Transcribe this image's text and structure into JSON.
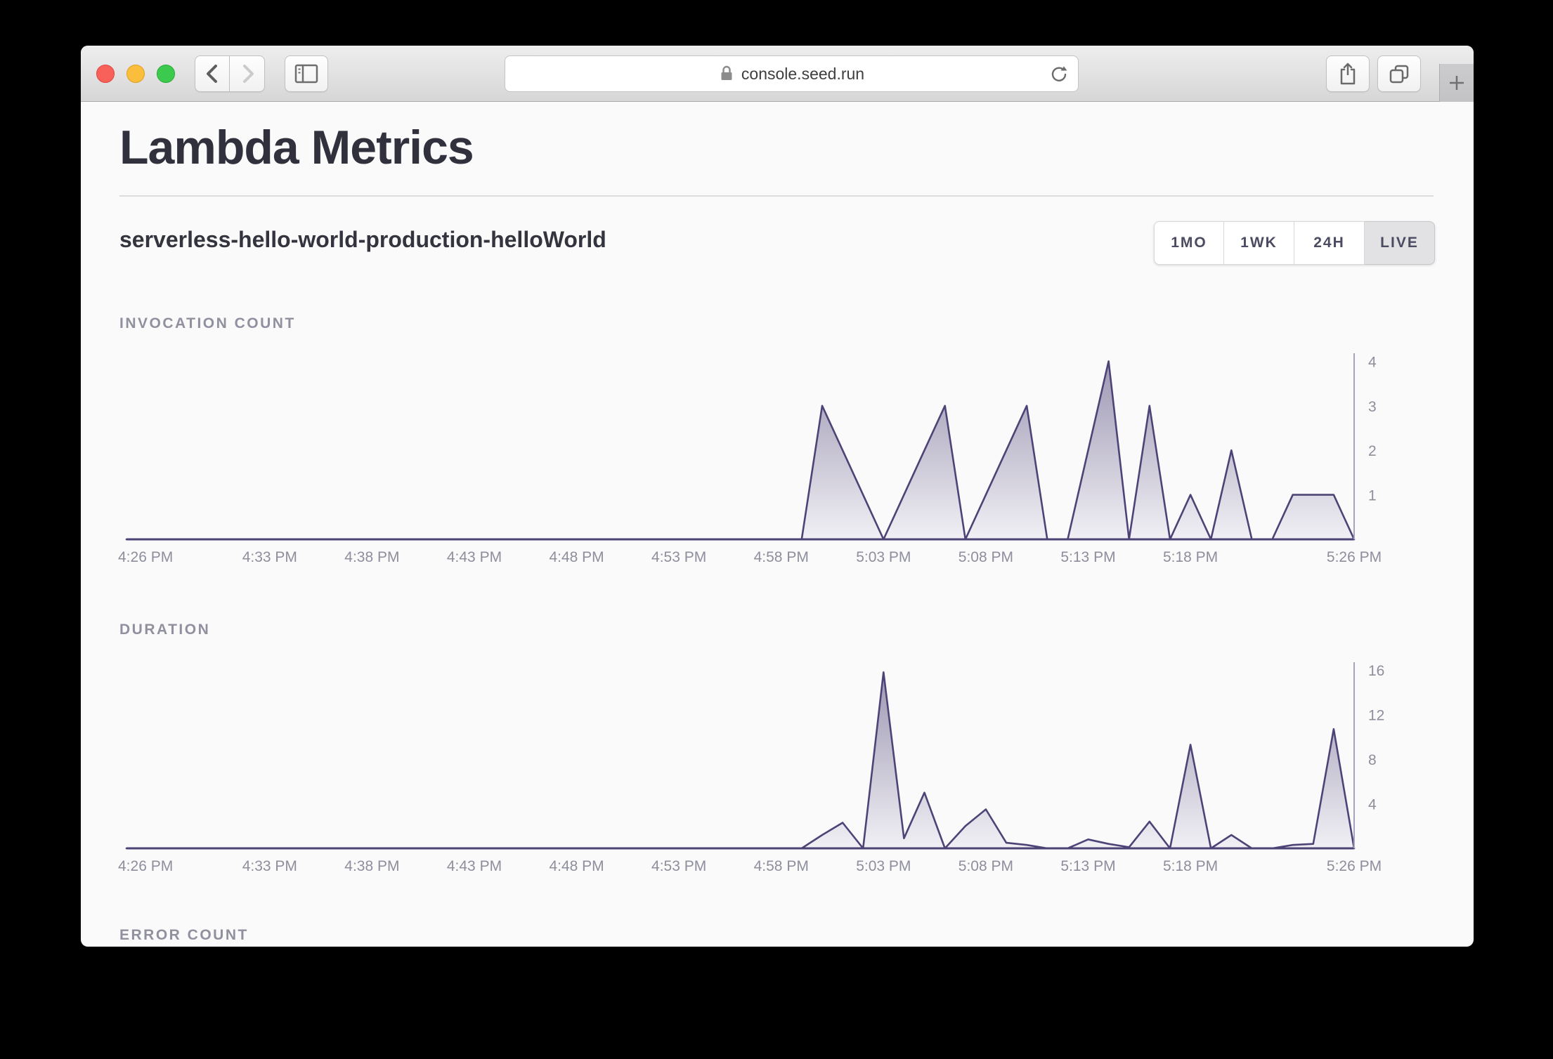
{
  "browser": {
    "address": "console.seed.run",
    "icons": {
      "close": "red-circle",
      "minimize": "yellow-circle",
      "fullscreen": "green-circle",
      "back": "chevron-left",
      "forward": "chevron-right",
      "sidebar": "split-rectangle",
      "lock": "padlock",
      "reload": "circular-arrow",
      "share": "square-with-up-arrow",
      "tabs": "overlapping-squares",
      "new_tab": "plus"
    }
  },
  "page": {
    "title": "Lambda Metrics",
    "function_name": "serverless-hello-world-production-helloWorld",
    "range_buttons": [
      {
        "label": "1MO",
        "active": false
      },
      {
        "label": "1WK",
        "active": false
      },
      {
        "label": "24H",
        "active": false
      },
      {
        "label": "LIVE",
        "active": true
      }
    ]
  },
  "colors": {
    "line": "#4e4377",
    "area_top": "#8e87a7",
    "area_bottom": "#f0eff4",
    "axis": "#a7a2bd",
    "tick_text": "#8e8e9d",
    "section_label": "#90909f",
    "heading": "#31313e",
    "active_range_bg": "#e2e1e3"
  },
  "chart_data": [
    {
      "id": "invocation",
      "type": "area",
      "title": "INVOCATION COUNT",
      "x_start": "4:26 PM",
      "x_end": "5:26 PM",
      "x_step_minutes": 1,
      "x_ticks": [
        {
          "label": "4:26 PM",
          "m": 0
        },
        {
          "label": "4:33 PM",
          "m": 7
        },
        {
          "label": "4:38 PM",
          "m": 12
        },
        {
          "label": "4:43 PM",
          "m": 17
        },
        {
          "label": "4:48 PM",
          "m": 22
        },
        {
          "label": "4:53 PM",
          "m": 27
        },
        {
          "label": "4:58 PM",
          "m": 32
        },
        {
          "label": "5:03 PM",
          "m": 37
        },
        {
          "label": "5:08 PM",
          "m": 42
        },
        {
          "label": "5:13 PM",
          "m": 47
        },
        {
          "label": "5:18 PM",
          "m": 52
        },
        {
          "label": "5:26 PM",
          "m": 60
        }
      ],
      "y_ticks": [
        4,
        3,
        2,
        1
      ],
      "y_max": 4.18,
      "y_axis_side": "right",
      "values": [
        0,
        0,
        0,
        0,
        0,
        0,
        0,
        0,
        0,
        0,
        0,
        0,
        0,
        0,
        0,
        0,
        0,
        0,
        0,
        0,
        0,
        0,
        0,
        0,
        0,
        0,
        0,
        0,
        0,
        0,
        0,
        0,
        0,
        0,
        3,
        2,
        1,
        0,
        1,
        2,
        3,
        0,
        1,
        2,
        3,
        0,
        0,
        2,
        4,
        0,
        3,
        0,
        1,
        0,
        2,
        0,
        0,
        1,
        1,
        1,
        0
      ]
    },
    {
      "id": "duration",
      "type": "area",
      "title": "DURATION",
      "x_start": "4:26 PM",
      "x_end": "5:26 PM",
      "x_step_minutes": 1,
      "x_ticks": [
        {
          "label": "4:26 PM",
          "m": 0
        },
        {
          "label": "4:33 PM",
          "m": 7
        },
        {
          "label": "4:38 PM",
          "m": 12
        },
        {
          "label": "4:43 PM",
          "m": 17
        },
        {
          "label": "4:48 PM",
          "m": 22
        },
        {
          "label": "4:53 PM",
          "m": 27
        },
        {
          "label": "4:58 PM",
          "m": 32
        },
        {
          "label": "5:03 PM",
          "m": 37
        },
        {
          "label": "5:08 PM",
          "m": 42
        },
        {
          "label": "5:13 PM",
          "m": 47
        },
        {
          "label": "5:18 PM",
          "m": 52
        },
        {
          "label": "5:26 PM",
          "m": 60
        }
      ],
      "y_ticks": [
        16,
        12,
        8,
        4
      ],
      "y_max": 16.7,
      "y_axis_side": "right",
      "values": [
        0,
        0,
        0,
        0,
        0,
        0,
        0,
        0,
        0,
        0,
        0,
        0,
        0,
        0,
        0,
        0,
        0,
        0,
        0,
        0,
        0,
        0,
        0,
        0,
        0,
        0,
        0,
        0,
        0,
        0,
        0,
        0,
        0,
        0,
        1.2,
        2.3,
        0,
        15.8,
        0.9,
        5,
        0,
        2,
        3.5,
        0.5,
        0.3,
        0,
        0,
        0.8,
        0.4,
        0.1,
        2.4,
        0,
        9.3,
        0,
        1.2,
        0,
        0,
        0.3,
        0.4,
        10.7,
        0
      ]
    },
    {
      "id": "error",
      "type": "area",
      "title": "ERROR COUNT",
      "note": "label only visible; chart cut off by window edge",
      "values": null
    }
  ]
}
